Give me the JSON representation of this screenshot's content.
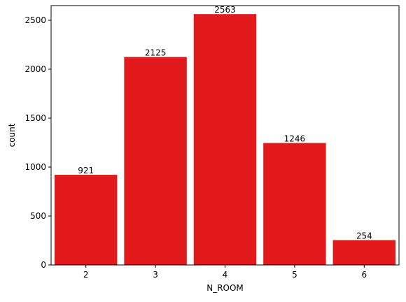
{
  "chart_data": {
    "type": "bar",
    "xlabel": "N_ROOM",
    "ylabel": "count",
    "categories": [
      "2",
      "3",
      "4",
      "5",
      "6"
    ],
    "values": [
      921,
      2125,
      2563,
      1246,
      254
    ],
    "data_labels": [
      "921",
      "2125",
      "2563",
      "1246",
      "254"
    ],
    "ylim": [
      0,
      2650
    ],
    "yticks": [
      0,
      500,
      1000,
      1500,
      2000,
      2500
    ],
    "grid": false,
    "bar_color": "#e31a1c"
  }
}
